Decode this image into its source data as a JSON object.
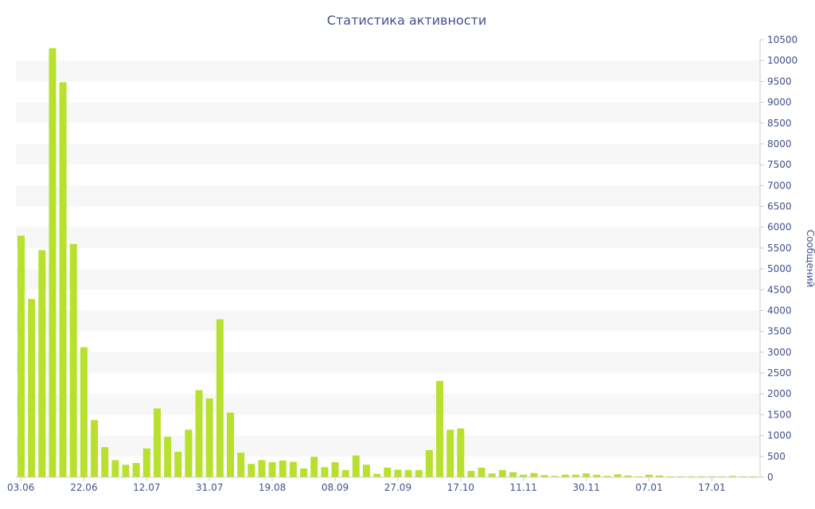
{
  "chart_data": {
    "type": "bar",
    "title": "Статистика активности",
    "xlabel": "",
    "ylabel": "Сообщений",
    "ylim": [
      0,
      10500
    ],
    "y_ticks": [
      0,
      500,
      1000,
      1500,
      2000,
      2500,
      3000,
      3500,
      4000,
      4500,
      5000,
      5500,
      6000,
      6500,
      7000,
      7500,
      8000,
      8500,
      9000,
      9500,
      10000,
      10500
    ],
    "x_tick_labels": [
      {
        "index": 0,
        "label": "03.06"
      },
      {
        "index": 6,
        "label": "22.06"
      },
      {
        "index": 12,
        "label": "12.07"
      },
      {
        "index": 18,
        "label": "31.07"
      },
      {
        "index": 24,
        "label": "19.08"
      },
      {
        "index": 30,
        "label": "08.09"
      },
      {
        "index": 36,
        "label": "27.09"
      },
      {
        "index": 42,
        "label": "17.10"
      },
      {
        "index": 48,
        "label": "11.11"
      },
      {
        "index": 54,
        "label": "30.11"
      },
      {
        "index": 60,
        "label": "07.01"
      },
      {
        "index": 66,
        "label": "17.01"
      }
    ],
    "values": [
      5800,
      4280,
      5450,
      10300,
      9480,
      5600,
      3120,
      1370,
      720,
      410,
      300,
      340,
      690,
      1650,
      970,
      610,
      1140,
      2090,
      1890,
      3790,
      1550,
      590,
      320,
      410,
      360,
      400,
      370,
      210,
      490,
      240,
      360,
      170,
      520,
      300,
      80,
      230,
      180,
      170,
      170,
      650,
      2310,
      1140,
      1170,
      150,
      230,
      90,
      170,
      120,
      60,
      100,
      50,
      30,
      60,
      60,
      90,
      60,
      30,
      70,
      40,
      20,
      60,
      40,
      20,
      20,
      20,
      20,
      20,
      20,
      30,
      20,
      20
    ],
    "bar_color": "#b7e12e",
    "band_color": "#f7f7f7",
    "text_color": "#44508a",
    "axis_color": "#cccccc",
    "grid": true,
    "yaxis_side": "right"
  }
}
